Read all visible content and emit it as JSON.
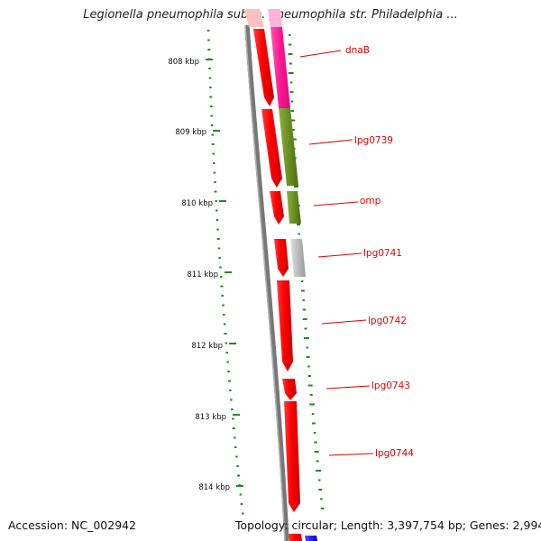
{
  "title": "Legionella pneumophila subsp. pneumophila str. Philadelphia ...",
  "footer": {
    "accession": "Accession: NC_002942",
    "topology": "Topology: circular; Length: 3,397,754 bp; Genes: 2,994"
  },
  "scale": {
    "ticks": [
      "808 kbp",
      "809 kbp",
      "810 kbp",
      "811 kbp",
      "812 kbp",
      "813 kbp",
      "814 kbp"
    ]
  },
  "genes": [
    {
      "label": "dnaB",
      "color": "#ff1493",
      "strand": "forward"
    },
    {
      "label": "lpg0739",
      "color": "#6b8e23",
      "strand": "forward"
    },
    {
      "label": "omp",
      "color": "#6b8e23",
      "strand": "forward"
    },
    {
      "label": "lpg0741",
      "color": "#bbbbbb",
      "strand": "forward"
    },
    {
      "label": "lpg0742",
      "color": "#ff0000",
      "strand": "reverse"
    },
    {
      "label": "lpg0743",
      "color": "#ff0000",
      "strand": "reverse"
    },
    {
      "label": "lpg0744",
      "color": "#ff0000",
      "strand": "reverse"
    }
  ],
  "colors": {
    "backbone": "#888888",
    "reverse_strand": "#ff0000",
    "gc_track": "#228b22",
    "label": "#e00000",
    "edge_blue": "#1a1aff"
  }
}
